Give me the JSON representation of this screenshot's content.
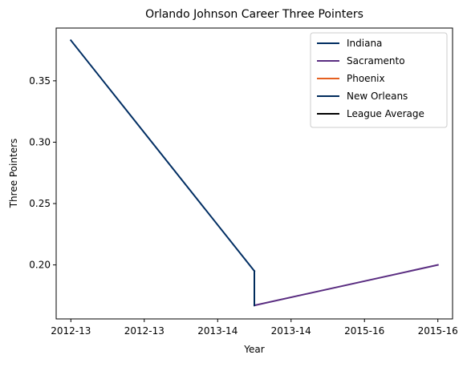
{
  "chart_data": {
    "type": "line",
    "title": "Orlando Johnson Career Three Pointers",
    "xlabel": "Year",
    "ylabel": "Three Pointers",
    "x_ticks": [
      "2012-13",
      "2012-13",
      "2013-14",
      "2013-14",
      "2015-16",
      "2015-16"
    ],
    "xlim": [
      -0.2,
      5.2
    ],
    "y_ticks": [
      0.2,
      0.25,
      0.3,
      0.35
    ],
    "ylim": [
      0.156,
      0.393
    ],
    "grid": false,
    "legend_position": "top-right",
    "series": [
      {
        "name": "Indiana",
        "color": "#002d62",
        "x": [
          0,
          2.5
        ],
        "y": [
          0.383,
          0.195
        ]
      },
      {
        "name": "Sacramento",
        "color": "#5a2d81",
        "x": [
          2.5,
          5
        ],
        "y": [
          0.167,
          0.2
        ]
      },
      {
        "name": "Phoenix",
        "color": "#e56020",
        "x": [],
        "y": []
      },
      {
        "name": "New Orleans",
        "color": "#002b5c",
        "x": [
          2.5,
          2.5
        ],
        "y": [
          0.195,
          0.167
        ]
      },
      {
        "name": "League Average",
        "color": "#000000",
        "x": [],
        "y": []
      }
    ]
  }
}
